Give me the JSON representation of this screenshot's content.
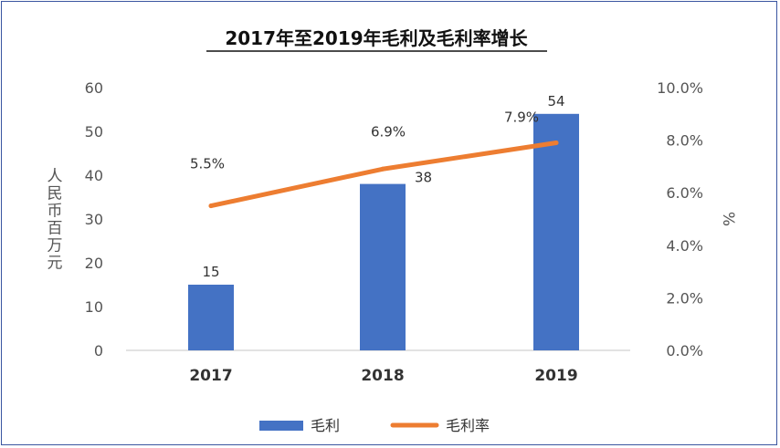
{
  "chart_data": {
    "type": "bar",
    "title": "2017年至2019年毛利及毛利率增长",
    "categories": [
      "2017",
      "2018",
      "2019"
    ],
    "series": [
      {
        "name": "毛利",
        "type": "bar",
        "axis": "left",
        "values": [
          15,
          38,
          54
        ],
        "labels": [
          "15",
          "38",
          "54"
        ],
        "color": "#4472c4"
      },
      {
        "name": "毛利率",
        "type": "line",
        "axis": "right",
        "values": [
          5.5,
          6.9,
          7.9
        ],
        "labels": [
          "5.5%",
          "6.9%",
          "7.9%"
        ],
        "color": "#ed7d31"
      }
    ],
    "ylabel": "人民币百万元",
    "y2label": "%",
    "ylim": [
      0,
      60
    ],
    "y2lim": [
      0,
      10
    ],
    "yticks": [
      "0",
      "10",
      "20",
      "30",
      "40",
      "50",
      "60"
    ],
    "y2ticks": [
      "0.0%",
      "2.0%",
      "4.0%",
      "6.0%",
      "8.0%",
      "10.0%"
    ],
    "grid": false,
    "legend": "bottom"
  }
}
